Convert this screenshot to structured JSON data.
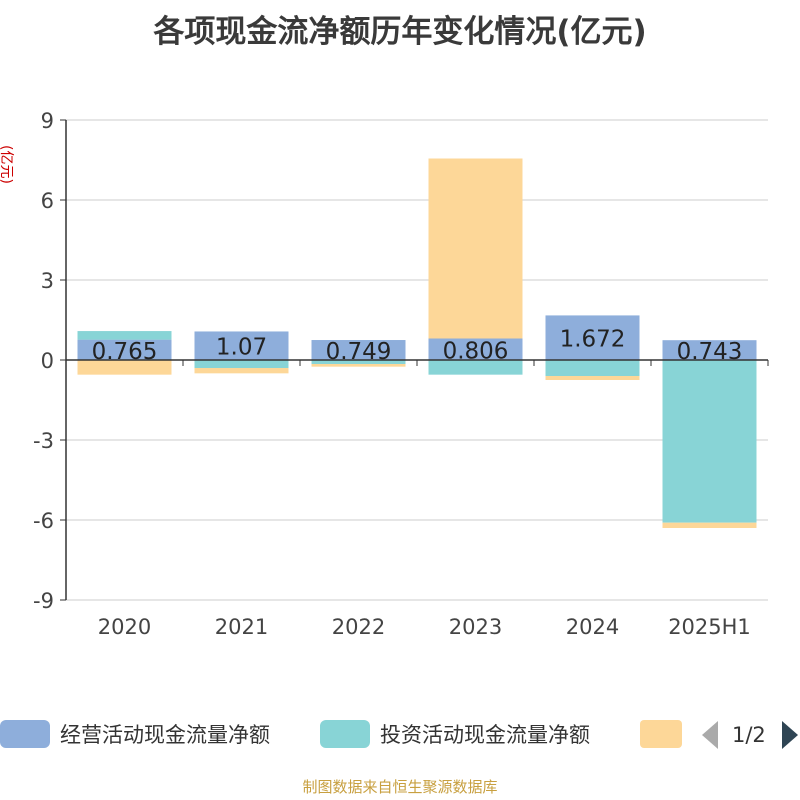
{
  "title": "各项现金流净额历年变化情况(亿元)",
  "source": "制图数据来自恒生聚源数据库",
  "legend_page": "1/2",
  "colors": {
    "operating": "#8eaedb",
    "investing": "#88d4d6",
    "financing": "#fdd798",
    "grid": "#cccccc",
    "axis": "#333333",
    "unit": "#cc0000"
  },
  "chart_data": {
    "type": "bar",
    "stacked": true,
    "y_unit": "(亿元)",
    "categories": [
      "2020",
      "2021",
      "2022",
      "2023",
      "2024",
      "2025H1"
    ],
    "ylim": [
      -9,
      9
    ],
    "yticks": [
      9,
      6,
      3,
      0,
      -3,
      -6,
      -9
    ],
    "grid": true,
    "legend_position": "bottom",
    "series": [
      {
        "name": "经营活动现金流量净额",
        "values": [
          0.765,
          1.07,
          0.749,
          0.806,
          1.672,
          0.743
        ],
        "labels": [
          "0.765",
          "1.07",
          "0.749",
          "0.806",
          "1.672",
          "0.743"
        ]
      },
      {
        "name": "投资活动现金流量净额",
        "values": [
          0.32,
          -0.3,
          -0.15,
          -0.55,
          -0.6,
          -6.1
        ]
      },
      {
        "name": "",
        "values": [
          -0.55,
          -0.2,
          -0.1,
          6.75,
          -0.15,
          -0.2
        ]
      }
    ]
  }
}
